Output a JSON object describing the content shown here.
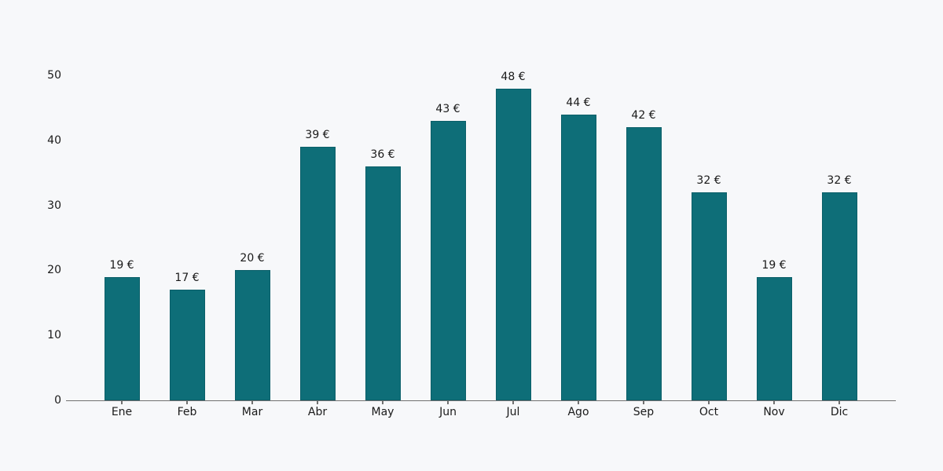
{
  "chart_data": {
    "type": "bar",
    "title": "",
    "xlabel": "",
    "ylabel": "",
    "unit": "€",
    "categories": [
      "Ene",
      "Feb",
      "Mar",
      "Abr",
      "May",
      "Jun",
      "Jul",
      "Ago",
      "Sep",
      "Oct",
      "Nov",
      "Dic"
    ],
    "values": [
      19,
      17,
      20,
      39,
      36,
      43,
      48,
      44,
      42,
      32,
      19,
      32
    ],
    "value_labels": [
      "19 €",
      "17 €",
      "20 €",
      "39 €",
      "36 €",
      "43 €",
      "48 €",
      "44 €",
      "42 €",
      "32 €",
      "19 €",
      "32 €"
    ],
    "y_ticks": [
      0,
      10,
      20,
      30,
      40,
      50
    ],
    "ylim": [
      0,
      50
    ],
    "grid": false,
    "legend": null,
    "colors": {
      "background": "#f7f8fa",
      "bar_fill": "#0e6e78",
      "bar_edge": "#0b5f69",
      "axis_line": "#707070",
      "tick_mark": "#707070",
      "text": "#1a1a1a"
    }
  }
}
